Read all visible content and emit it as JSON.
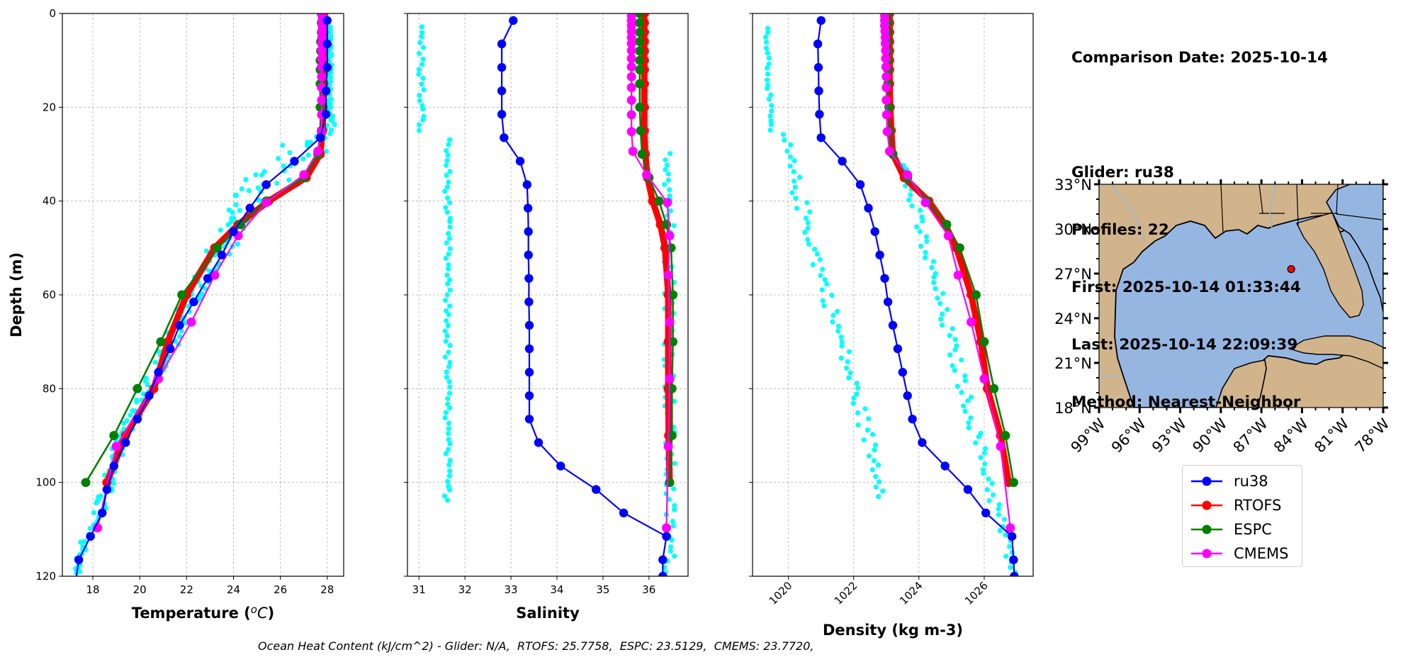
{
  "info": {
    "lines": [
      "Comparison Date: 2025-10-14",
      "",
      "Glider: ru38",
      "Profiles: 22",
      "First: 2025-10-14 01:33:44",
      "Last: 2025-10-14 22:09:39",
      "Method: Nearest-Neighbor"
    ]
  },
  "footer": "Ocean Heat Content (kJ/cm^2) - Glider: N/A,  RTOFS: 25.7758,  ESPC: 23.5129,  CMEMS: 23.7720,",
  "colors": {
    "ru38": "#0000ff",
    "RTOFS": "#ff0000",
    "ESPC": "#008000",
    "CMEMS": "#ff00ff",
    "glider_scatter": "#00ffff",
    "land": "#d2b48c",
    "ocean": "#96b6e2",
    "grid": "#b0b0b0"
  },
  "legend": {
    "entries": [
      {
        "name": "ru38",
        "color": "#0000ff"
      },
      {
        "name": "RTOFS",
        "color": "#ff0000"
      },
      {
        "name": "ESPC",
        "color": "#008000"
      },
      {
        "name": "CMEMS",
        "color": "#ff00ff"
      }
    ]
  },
  "map": {
    "lat_ticks": [
      "33°N",
      "30°N",
      "27°N",
      "24°N",
      "21°N",
      "18°N"
    ],
    "lon_ticks": [
      "99°W",
      "96°W",
      "93°W",
      "90°W",
      "87°W",
      "84°W",
      "81°W",
      "78°W"
    ],
    "extent": {
      "lon_min": -99,
      "lon_max": -78,
      "lat_min": 18,
      "lat_max": 33
    },
    "glider_position": {
      "lon": -84.8,
      "lat": 27.3,
      "color": "#ff0000"
    }
  },
  "chart_data": [
    {
      "type": "line",
      "id": "temperature",
      "title": "",
      "xlabel": "Temperature (°C)",
      "ylabel": "Depth (m)",
      "xlim": [
        16.7,
        28.7
      ],
      "ylim": [
        120,
        0
      ],
      "xticks": [
        18,
        20,
        22,
        24,
        26,
        28
      ],
      "yticks": [
        0,
        20,
        40,
        60,
        80,
        100,
        120
      ],
      "grid": true,
      "tick_rotation": 0,
      "series": [
        {
          "name": "ru38",
          "depth": [
            1.5,
            6.5,
            11.5,
            16.5,
            21.5,
            26.5,
            31.5,
            36.5,
            41.5,
            46.5,
            51.5,
            56.5,
            61.5,
            66.5,
            71.5,
            76.5,
            81.5,
            86.5,
            91.5,
            96.5,
            101.5,
            106.5,
            111.5,
            116.5,
            120
          ],
          "values": [
            28.0,
            28.0,
            28.0,
            27.95,
            27.95,
            27.7,
            26.6,
            25.4,
            24.7,
            24.0,
            23.5,
            22.9,
            22.3,
            21.7,
            21.3,
            20.8,
            20.4,
            19.9,
            19.4,
            18.9,
            18.6,
            18.4,
            17.9,
            17.4,
            17.3
          ],
          "markers_count": 24
        },
        {
          "name": "RTOFS",
          "depth": [
            0,
            2,
            4,
            6,
            8,
            10,
            12,
            15,
            20,
            25,
            30,
            35,
            40,
            45,
            50,
            60,
            70,
            80,
            90,
            100
          ],
          "values": [
            27.85,
            27.85,
            27.85,
            27.85,
            27.85,
            27.85,
            27.85,
            27.85,
            27.82,
            27.8,
            27.7,
            27.1,
            25.5,
            24.2,
            23.2,
            22.0,
            21.2,
            20.6,
            19.4,
            18.6
          ]
        },
        {
          "name": "ESPC",
          "depth": [
            0,
            2,
            4,
            6,
            8,
            10,
            12,
            15,
            20,
            25,
            30,
            35,
            40,
            45,
            50,
            60,
            70,
            80,
            90,
            100
          ],
          "values": [
            27.75,
            27.75,
            27.75,
            27.72,
            27.72,
            27.7,
            27.7,
            27.7,
            27.7,
            27.75,
            27.6,
            27.0,
            25.4,
            24.3,
            23.3,
            21.8,
            20.9,
            19.9,
            18.9,
            17.7
          ]
        },
        {
          "name": "CMEMS",
          "depth": [
            0.5,
            1.5,
            2.6,
            3.8,
            5.1,
            6.4,
            7.9,
            9.6,
            11.4,
            13.5,
            15.8,
            18.5,
            21.6,
            25.2,
            29.4,
            34.4,
            40.3,
            47.4,
            55.8,
            65.8,
            77.9,
            92.3,
            109.7
          ],
          "values": [
            27.78,
            27.78,
            27.78,
            27.77,
            27.77,
            27.76,
            27.76,
            27.76,
            27.76,
            27.76,
            27.76,
            27.76,
            27.76,
            27.75,
            27.6,
            27.0,
            25.4,
            24.2,
            23.2,
            22.2,
            20.8,
            19.0,
            18.2
          ]
        }
      ],
      "scatter": {
        "name": "ru38 profiles",
        "profile": {
          "depth": [
            3,
            10,
            20,
            26,
            28,
            30,
            32,
            35,
            40,
            45,
            50,
            55,
            60,
            65,
            70,
            75,
            80,
            85,
            90,
            95,
            100,
            105,
            110,
            115,
            120
          ],
          "values": [
            28.1,
            28.1,
            28.1,
            28.05,
            27.3,
            26.8,
            26.0,
            25.3,
            24.6,
            24.1,
            23.4,
            22.9,
            22.3,
            21.8,
            21.3,
            20.8,
            20.3,
            19.9,
            19.3,
            18.9,
            18.6,
            18.3,
            17.9,
            17.5,
            17.3
          ]
        },
        "spread": [
          0.08,
          0.08,
          0.1,
          0.3,
          1.3,
          1.4,
          1.3,
          1.1,
          0.9,
          0.8,
          0.6,
          0.5,
          0.5,
          0.4,
          0.4,
          0.3,
          0.3,
          0.3,
          0.3,
          0.3,
          0.3,
          0.3,
          0.25,
          0.2,
          0.1
        ]
      }
    },
    {
      "type": "line",
      "id": "salinity",
      "title": "",
      "xlabel": "Salinity",
      "ylabel": "",
      "xlim": [
        30.75,
        36.85
      ],
      "ylim": [
        120,
        0
      ],
      "xticks": [
        31,
        32,
        33,
        34,
        35,
        36
      ],
      "yticks": [
        0,
        20,
        40,
        60,
        80,
        100,
        120
      ],
      "grid": true,
      "tick_rotation": 0,
      "series": [
        {
          "name": "ru38",
          "depth": [
            1.5,
            6.5,
            11.5,
            16.5,
            21.5,
            26.5,
            31.5,
            36.5,
            41.5,
            46.5,
            51.5,
            56.5,
            61.5,
            66.5,
            71.5,
            76.5,
            81.5,
            86.5,
            91.5,
            96.5,
            101.5,
            106.5,
            111.5,
            116.5,
            120
          ],
          "values": [
            33.05,
            32.8,
            32.8,
            32.8,
            32.8,
            32.85,
            33.2,
            33.35,
            33.37,
            33.38,
            33.38,
            33.39,
            33.39,
            33.4,
            33.4,
            33.4,
            33.4,
            33.4,
            33.6,
            34.08,
            34.85,
            35.45,
            36.38,
            36.3,
            36.3
          ]
        },
        {
          "name": "RTOFS",
          "depth": [
            0,
            2,
            4,
            6,
            8,
            10,
            12,
            15,
            20,
            25,
            30,
            35,
            40,
            45,
            50,
            60,
            70,
            80,
            90,
            100
          ],
          "values": [
            35.9,
            35.9,
            35.9,
            35.9,
            35.9,
            35.9,
            35.9,
            35.9,
            35.9,
            35.9,
            35.92,
            35.97,
            36.08,
            36.25,
            36.35,
            36.42,
            36.42,
            36.42,
            36.43,
            36.45
          ]
        },
        {
          "name": "ESPC",
          "depth": [
            0,
            2,
            4,
            6,
            8,
            10,
            12,
            15,
            20,
            25,
            30,
            35,
            40,
            45,
            50,
            60,
            70,
            80,
            90,
            100
          ],
          "values": [
            35.8,
            35.8,
            35.8,
            35.8,
            35.8,
            35.8,
            35.8,
            35.8,
            35.8,
            35.82,
            35.85,
            36.0,
            36.22,
            36.38,
            36.48,
            36.52,
            36.52,
            36.5,
            36.5,
            36.45
          ]
        },
        {
          "name": "CMEMS",
          "depth": [
            0.5,
            1.5,
            2.6,
            3.8,
            5.1,
            6.4,
            7.9,
            9.6,
            11.4,
            13.5,
            15.8,
            18.5,
            21.6,
            25.2,
            29.4,
            34.4,
            40.3,
            47.4,
            55.8,
            65.8,
            77.9,
            92.3,
            109.7
          ],
          "values": [
            35.62,
            35.62,
            35.62,
            35.62,
            35.62,
            35.62,
            35.62,
            35.62,
            35.62,
            35.62,
            35.62,
            35.62,
            35.62,
            35.62,
            35.65,
            35.95,
            36.4,
            36.45,
            36.42,
            36.45,
            36.45,
            36.42,
            36.38
          ]
        }
      ],
      "scatter": {
        "name": "ru38 profiles",
        "clusters": [
          {
            "depth": [
              3,
              26
            ],
            "value": 31.05,
            "spread": 0.07
          },
          {
            "depth": [
              27,
              104
            ],
            "value": 31.62,
            "spread": 0.06
          },
          {
            "depth": [
              30,
              120
            ],
            "value": 36.45,
            "spread": 0.12
          }
        ]
      }
    },
    {
      "type": "line",
      "id": "density",
      "title": "",
      "xlabel": "Density (kg m-3)",
      "ylabel": "",
      "xlim": [
        1018.9,
        1027.5
      ],
      "ylim": [
        120,
        0
      ],
      "xticks": [
        1020,
        1022,
        1024,
        1026
      ],
      "yticks": [
        0,
        20,
        40,
        60,
        80,
        100,
        120
      ],
      "grid": true,
      "tick_rotation": 45,
      "series": [
        {
          "name": "ru38",
          "depth": [
            1.5,
            6.5,
            11.5,
            16.5,
            21.5,
            26.5,
            31.5,
            36.5,
            41.5,
            46.5,
            51.5,
            56.5,
            61.5,
            66.5,
            71.5,
            76.5,
            81.5,
            86.5,
            91.5,
            96.5,
            101.5,
            106.5,
            111.5,
            116.5,
            120
          ],
          "values": [
            1021.0,
            1020.9,
            1020.92,
            1020.93,
            1020.95,
            1021.0,
            1021.65,
            1022.2,
            1022.45,
            1022.65,
            1022.8,
            1022.95,
            1023.05,
            1023.2,
            1023.35,
            1023.5,
            1023.65,
            1023.8,
            1024.1,
            1024.8,
            1025.5,
            1026.05,
            1026.85,
            1026.9,
            1026.92
          ]
        },
        {
          "name": "RTOFS",
          "depth": [
            0,
            2,
            4,
            6,
            8,
            10,
            12,
            15,
            20,
            25,
            30,
            35,
            40,
            45,
            50,
            60,
            70,
            80,
            90,
            100
          ],
          "values": [
            1023.1,
            1023.1,
            1023.1,
            1023.1,
            1023.1,
            1023.1,
            1023.1,
            1023.1,
            1023.12,
            1023.15,
            1023.2,
            1023.55,
            1024.3,
            1024.8,
            1025.15,
            1025.6,
            1025.9,
            1026.1,
            1026.5,
            1026.75
          ]
        },
        {
          "name": "ESPC",
          "depth": [
            0,
            2,
            4,
            6,
            8,
            10,
            12,
            15,
            20,
            25,
            30,
            35,
            40,
            45,
            50,
            60,
            70,
            80,
            90,
            100
          ],
          "values": [
            1023.05,
            1023.05,
            1023.05,
            1023.05,
            1023.05,
            1023.05,
            1023.05,
            1023.05,
            1023.08,
            1023.1,
            1023.2,
            1023.65,
            1024.25,
            1024.85,
            1025.25,
            1025.75,
            1026.0,
            1026.3,
            1026.65,
            1026.9
          ]
        },
        {
          "name": "CMEMS",
          "depth": [
            0.5,
            1.5,
            2.6,
            3.8,
            5.1,
            6.4,
            7.9,
            9.6,
            11.4,
            13.5,
            15.8,
            18.5,
            21.6,
            25.2,
            29.4,
            34.4,
            40.3,
            47.4,
            55.8,
            65.8,
            77.9,
            92.3,
            109.7
          ],
          "values": [
            1022.95,
            1022.95,
            1022.95,
            1022.96,
            1022.97,
            1022.97,
            1022.98,
            1022.98,
            1022.99,
            1023.0,
            1023.0,
            1023.0,
            1023.01,
            1023.03,
            1023.1,
            1023.65,
            1024.2,
            1024.9,
            1025.2,
            1025.6,
            1026.0,
            1026.5,
            1026.8
          ]
        }
      ],
      "scatter": {
        "name": "ru38 profiles",
        "clusters": [
          {
            "depth": [
              3,
              26
            ],
            "value_start": 1019.35,
            "value_end": 1019.45,
            "spread": 0.06
          },
          {
            "depth": [
              26,
              104
            ],
            "value_start": 1019.8,
            "value_end": 1023.0,
            "spread": 0.2
          },
          {
            "depth": [
              30,
              120
            ],
            "value_start": 1023.4,
            "value_end": 1026.95,
            "spread": 0.18
          }
        ]
      }
    }
  ]
}
